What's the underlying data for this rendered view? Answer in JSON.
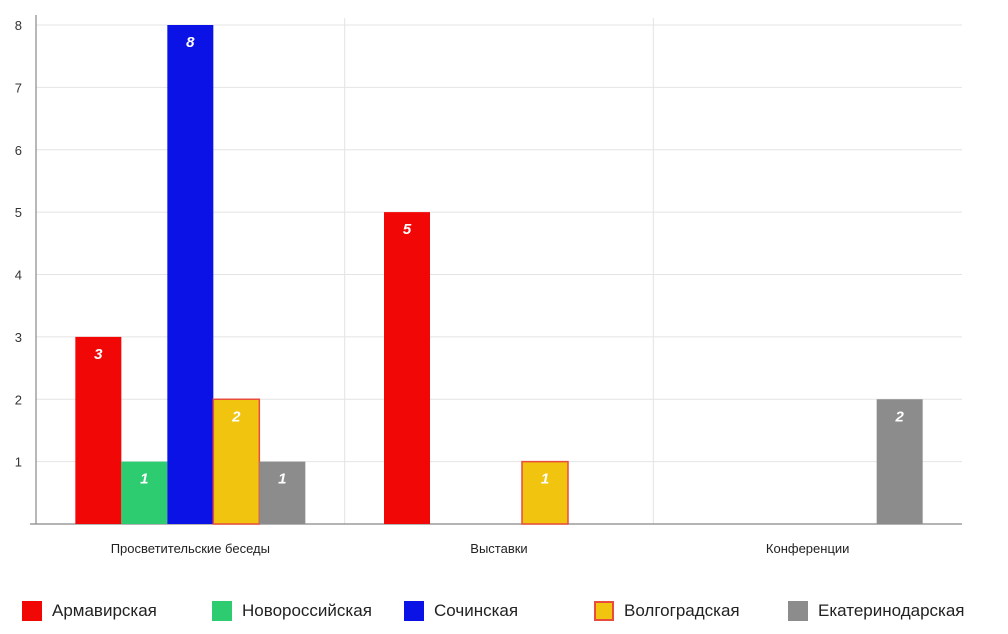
{
  "chart_data": {
    "type": "bar",
    "categories": [
      "Просветительские беседы",
      "Выставки",
      "Конференции"
    ],
    "ylim": [
      0,
      8
    ],
    "yticks": [
      1,
      2,
      3,
      4,
      5,
      6,
      7,
      8
    ],
    "grid": true,
    "legend_position": "bottom",
    "series": [
      {
        "name": "Армавирская",
        "color": "#f20707",
        "values": [
          3,
          5,
          0
        ]
      },
      {
        "name": "Новороссийская",
        "color": "#2ecc71",
        "values": [
          1,
          0,
          0
        ]
      },
      {
        "name": "Сочинская",
        "color": "#0a12e6",
        "values": [
          8,
          0,
          0
        ]
      },
      {
        "name": "Волгоградская",
        "color": "#f1c40f",
        "border": "#e74c3c",
        "values": [
          2,
          1,
          0
        ]
      },
      {
        "name": "Екатеринодарская",
        "color": "#8c8c8c",
        "values": [
          1,
          0,
          2
        ]
      }
    ]
  }
}
